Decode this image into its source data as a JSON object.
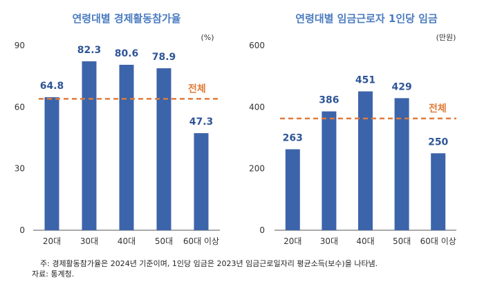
{
  "chart_data": [
    {
      "type": "bar",
      "title": "연령대별 경제활동참가율",
      "unit": "(%)",
      "categories": [
        "20대",
        "30대",
        "40대",
        "50대",
        "60대 이상"
      ],
      "values": [
        64.8,
        82.3,
        80.6,
        78.9,
        47.3
      ],
      "value_labels": [
        "64.8",
        "82.3",
        "80.6",
        "78.9",
        "47.3"
      ],
      "ylim": [
        0,
        90
      ],
      "yticks": [
        0,
        30,
        60,
        90
      ],
      "reference": {
        "label": "전체",
        "value": 64
      },
      "bar_color": "#3c64aa",
      "reference_color": "#e07b39",
      "grid": false
    },
    {
      "type": "bar",
      "title": "연령대별 임금근로자 1인당 임금",
      "unit": "(만원)",
      "categories": [
        "20대",
        "30대",
        "40대",
        "50대",
        "60대 이상"
      ],
      "values": [
        263,
        386,
        451,
        429,
        250
      ],
      "value_labels": [
        "263",
        "386",
        "451",
        "429",
        "250"
      ],
      "ylim": [
        0,
        600
      ],
      "yticks": [
        0,
        200,
        400,
        600
      ],
      "reference": {
        "label": "전체",
        "value": 363
      },
      "bar_color": "#3c64aa",
      "reference_color": "#e07b39",
      "grid": false
    }
  ],
  "footnote": {
    "note": "주: 경제활동참가율은 2024년 기준이며, 1인당 임금은 2023년 임금근로일자리 평균소득(보수)을 나타냄.",
    "source": "자료: 통계청."
  }
}
